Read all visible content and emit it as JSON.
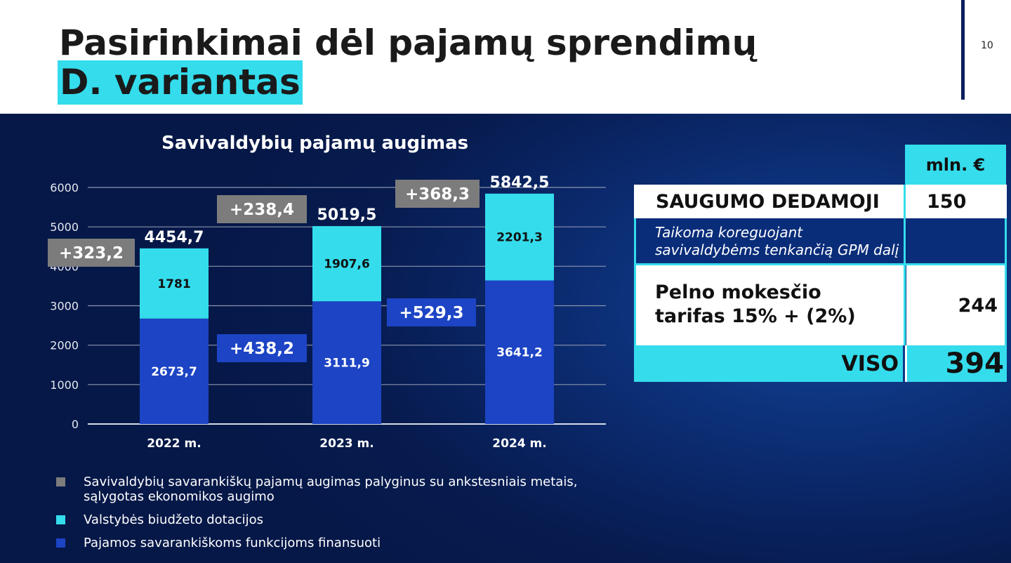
{
  "header": {
    "title_line1": "Pasirinkimai dėl pajamų sprendimų",
    "title_line2": "D. variantas",
    "page_number": "10"
  },
  "colors": {
    "accent_cyan": "#34dcec",
    "bar_blue": "#1c44c4",
    "label_gray": "#7c7c7c",
    "label_blue": "#1c44c4",
    "background_navy": "#071b4f"
  },
  "chart_data": {
    "type": "bar",
    "stacked": true,
    "title": "Savivaldybių pajamų augimas",
    "categories": [
      "2022 m.",
      "2023 m.",
      "2024 m."
    ],
    "series": [
      {
        "name": "Pajamos savarankiškoms funkcijoms finansuoti",
        "values": [
          2673.7,
          3111.9,
          3641.2
        ],
        "value_labels": [
          "2673,7",
          "3111,9",
          "3641,2"
        ],
        "color": "#1c44c4"
      },
      {
        "name": "Valstybės biudžeto dotacijos",
        "values": [
          1781,
          1907.6,
          2201.3
        ],
        "value_labels": [
          "1781",
          "1907,6",
          "2201,3"
        ],
        "color": "#34dcec"
      }
    ],
    "totals": [
      "4454,7",
      "5019,5",
      "5842,5"
    ],
    "growth_gray": [
      "+323,2",
      "+238,4",
      "+368,3"
    ],
    "growth_blue": [
      "+438,2",
      "+529,3"
    ],
    "y_ticks": [
      0,
      1000,
      2000,
      3000,
      4000,
      5000,
      6000
    ],
    "ylim": [
      0,
      6000
    ],
    "grid": true,
    "xlabel": "",
    "ylabel": ""
  },
  "table": {
    "unit": "mln. €",
    "saugumo_label": "SAUGUMO DEDAMOJI",
    "saugumo_value": "150",
    "note_line1": "Taikoma koreguojant",
    "note_line2": "savivaldybėms tenkančią GPM dalį",
    "pelno_line1": "Pelno mokesčio",
    "pelno_line2": "tarifas 15% + (2%)",
    "pelno_value": "244",
    "viso_label": "VISO",
    "viso_value": "394"
  },
  "legend": [
    {
      "text": "Savivaldybių savarankiškų pajamų augimas palyginus su ankstesniais metais, sąlygotas ekonomikos augimo",
      "color": "#7c7c7c"
    },
    {
      "text": "Valstybės biudžeto dotacijos",
      "color": "#34dcec"
    },
    {
      "text": "Pajamos savarankiškoms funkcijoms finansuoti",
      "color": "#1c44c4"
    }
  ]
}
